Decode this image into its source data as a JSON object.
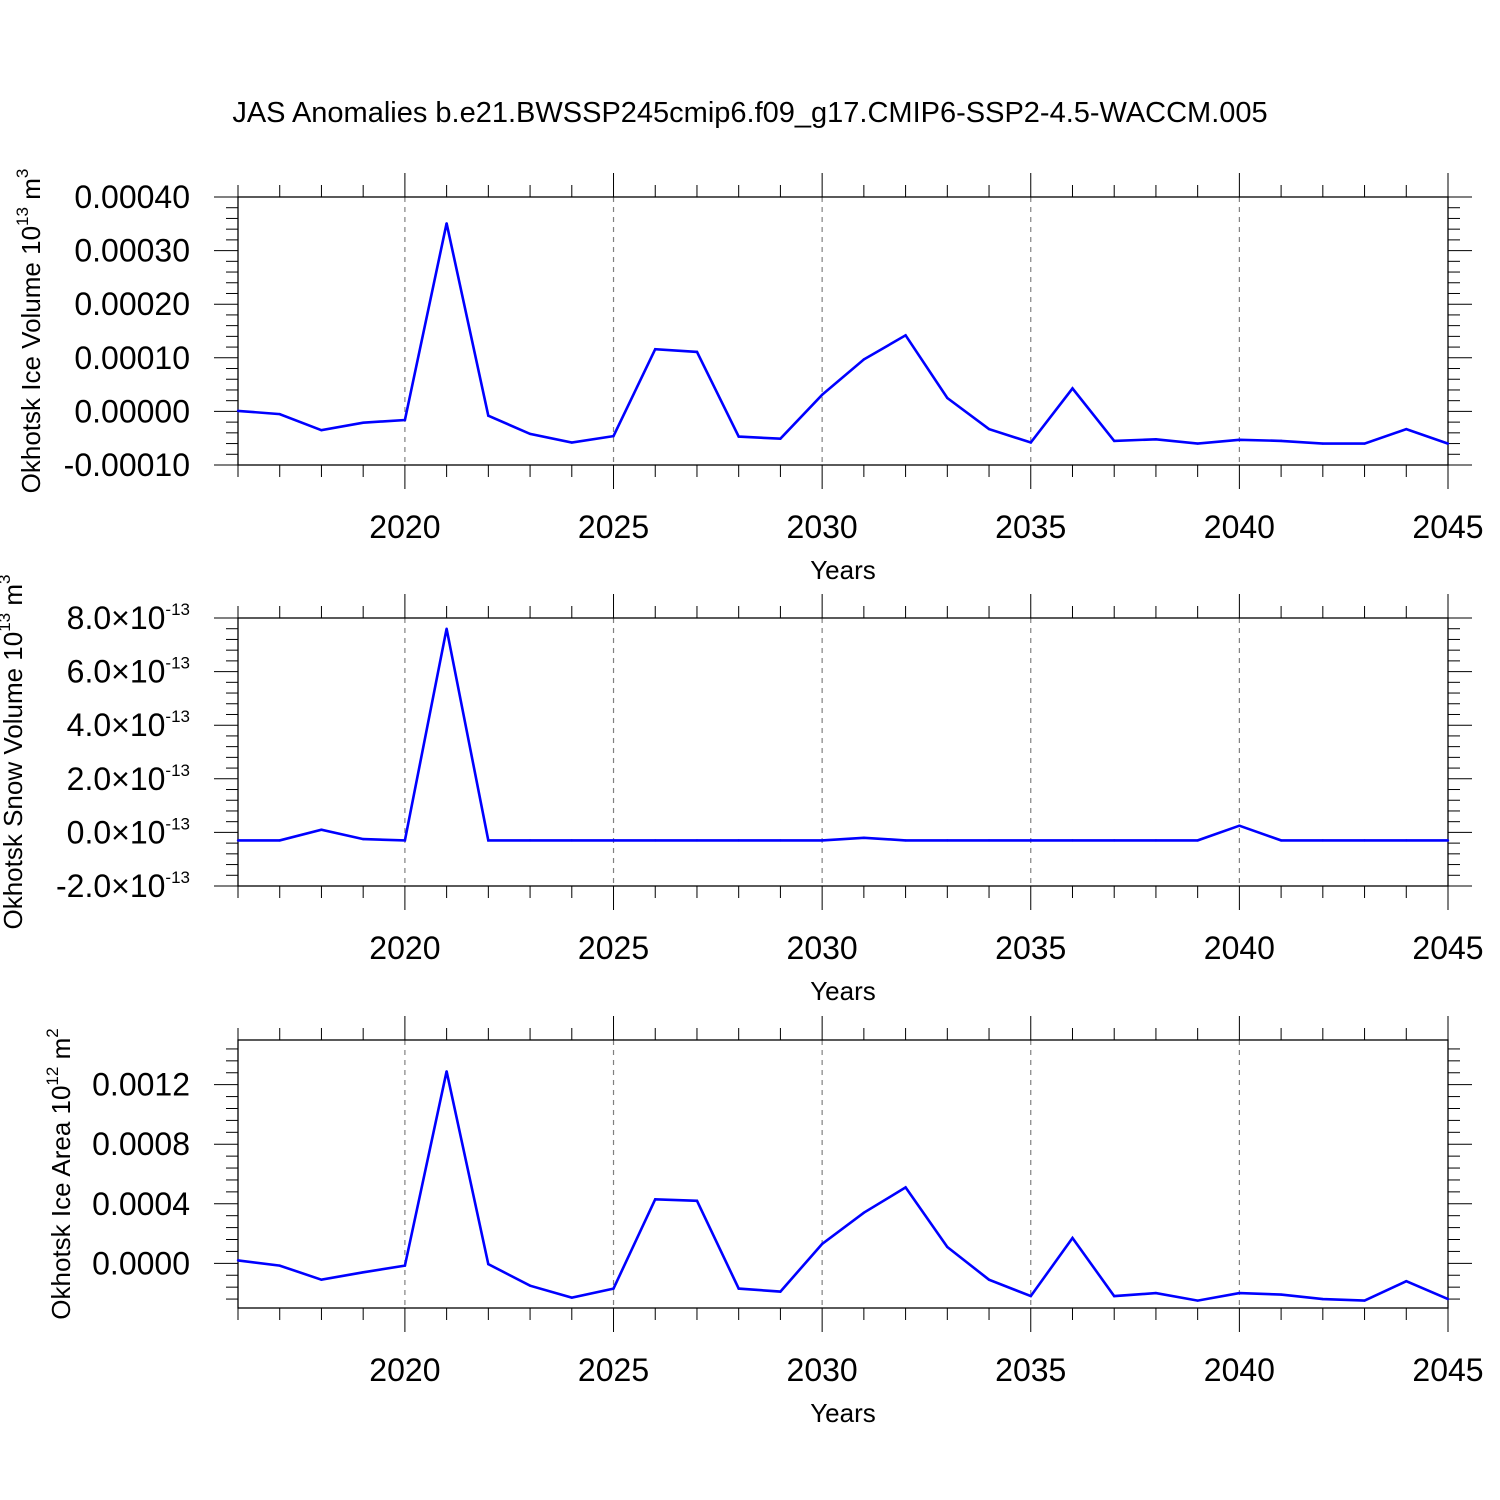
{
  "title": "JAS Anomalies b.e21.BWSSP245cmip6.f09_g17.CMIP6-SSP2-4.5-WACCM.005",
  "colors": {
    "series": "#0000ff",
    "axis": "#000000",
    "grid": "#808080"
  },
  "chart_data": [
    {
      "type": "line",
      "xlabel": "Years",
      "ylabel": {
        "text": "Okhotsk Ice Volume 10",
        "exp": "13",
        "unit": " m",
        "unit_exp": "3"
      },
      "xlim": [
        2016,
        2045
      ],
      "ylim": [
        -0.0001,
        0.0004
      ],
      "xticks": [
        2020,
        2025,
        2030,
        2035,
        2040,
        2045
      ],
      "xtick_labels": [
        "2020",
        "2025",
        "2030",
        "2035",
        "2040",
        "2045"
      ],
      "yticks": [
        -0.0001,
        0,
        0.0001,
        0.0002,
        0.0003,
        0.0004
      ],
      "ytick_labels": [
        "-0.00010",
        "0.00000",
        "0.00010",
        "0.00020",
        "0.00030",
        "0.00040"
      ],
      "grid": "vertical dashed",
      "x": [
        2016,
        2017,
        2018,
        2019,
        2020,
        2021,
        2022,
        2023,
        2024,
        2025,
        2026,
        2027,
        2028,
        2029,
        2030,
        2031,
        2032,
        2033,
        2034,
        2035,
        2036,
        2037,
        2038,
        2039,
        2040,
        2041,
        2042,
        2043,
        2044,
        2045
      ],
      "values": [
        1e-06,
        -5e-06,
        -3.5e-05,
        -2.1e-05,
        -1.6e-05,
        0.000351,
        -8e-06,
        -4.2e-05,
        -5.8e-05,
        -4.6e-05,
        0.000116,
        0.000111,
        -4.7e-05,
        -5.1e-05,
        3.1e-05,
        9.7e-05,
        0.000142,
        2.5e-05,
        -3.3e-05,
        -5.8e-05,
        4.3e-05,
        -5.5e-05,
        -5.2e-05,
        -6e-05,
        -5.3e-05,
        -5.5e-05,
        -6e-05,
        -6e-05,
        -3.3e-05,
        -6e-05
      ]
    },
    {
      "type": "line",
      "xlabel": "Years",
      "ylabel": {
        "text": "Okhotsk Snow Volume 10",
        "exp": "13",
        "unit": " m",
        "unit_exp": "3"
      },
      "xlim": [
        2016,
        2045
      ],
      "ylim": [
        -2e-13,
        8e-13
      ],
      "xticks": [
        2020,
        2025,
        2030,
        2035,
        2040,
        2045
      ],
      "xtick_labels": [
        "2020",
        "2025",
        "2030",
        "2035",
        "2040",
        "2045"
      ],
      "yticks": [
        -2e-13,
        0,
        2e-13,
        4e-13,
        6e-13,
        8e-13
      ],
      "ytick_labels": [
        {
          "mantissa": "-2.0",
          "times": "×10",
          "exp": "-13"
        },
        {
          "mantissa": "0.0",
          "times": "×10",
          "exp": "-13"
        },
        {
          "mantissa": "2.0",
          "times": "×10",
          "exp": "-13"
        },
        {
          "mantissa": "4.0",
          "times": "×10",
          "exp": "-13"
        },
        {
          "mantissa": "6.0",
          "times": "×10",
          "exp": "-13"
        },
        {
          "mantissa": "8.0",
          "times": "×10",
          "exp": "-13"
        }
      ],
      "grid": "vertical dashed",
      "x": [
        2016,
        2017,
        2018,
        2019,
        2020,
        2021,
        2022,
        2023,
        2024,
        2025,
        2026,
        2027,
        2028,
        2029,
        2030,
        2031,
        2032,
        2033,
        2034,
        2035,
        2036,
        2037,
        2038,
        2039,
        2040,
        2041,
        2042,
        2043,
        2044,
        2045
      ],
      "values": [
        -3e-14,
        -3e-14,
        1e-14,
        -2.5e-14,
        -3e-14,
        7.6e-13,
        -3e-14,
        -3e-14,
        -3e-14,
        -3e-14,
        -3e-14,
        -3e-14,
        -3e-14,
        -3e-14,
        -3e-14,
        -2e-14,
        -3e-14,
        -3e-14,
        -3e-14,
        -3e-14,
        -3e-14,
        -3e-14,
        -3e-14,
        -3e-14,
        2.5e-14,
        -3e-14,
        -3e-14,
        -3e-14,
        -3e-14,
        -3e-14
      ]
    },
    {
      "type": "line",
      "xlabel": "Years",
      "ylabel": {
        "text": "Okhotsk Ice Area 10",
        "exp": "12",
        "unit": " m",
        "unit_exp": "2"
      },
      "xlim": [
        2016,
        2045
      ],
      "ylim": [
        -0.0003,
        0.0015
      ],
      "xticks": [
        2020,
        2025,
        2030,
        2035,
        2040,
        2045
      ],
      "xtick_labels": [
        "2020",
        "2025",
        "2030",
        "2035",
        "2040",
        "2045"
      ],
      "yticks": [
        0,
        0.0004,
        0.0008,
        0.0012
      ],
      "ytick_labels": [
        "0.0000",
        "0.0004",
        "0.0008",
        "0.0012"
      ],
      "grid": "vertical dashed",
      "x": [
        2016,
        2017,
        2018,
        2019,
        2020,
        2021,
        2022,
        2023,
        2024,
        2025,
        2026,
        2027,
        2028,
        2029,
        2030,
        2031,
        2032,
        2033,
        2034,
        2035,
        2036,
        2037,
        2038,
        2039,
        2040,
        2041,
        2042,
        2043,
        2044,
        2045
      ],
      "values": [
        2e-05,
        -1.5e-05,
        -0.00011,
        -6e-05,
        -1.5e-05,
        0.00129,
        -5e-06,
        -0.00015,
        -0.00023,
        -0.00017,
        0.00043,
        0.00042,
        -0.00017,
        -0.00019,
        0.00013,
        0.00034,
        0.00051,
        0.00011,
        -0.00011,
        -0.00022,
        0.00017,
        -0.00022,
        -0.0002,
        -0.00025,
        -0.0002,
        -0.00021,
        -0.00024,
        -0.00025,
        -0.00012,
        -0.00024
      ]
    }
  ]
}
